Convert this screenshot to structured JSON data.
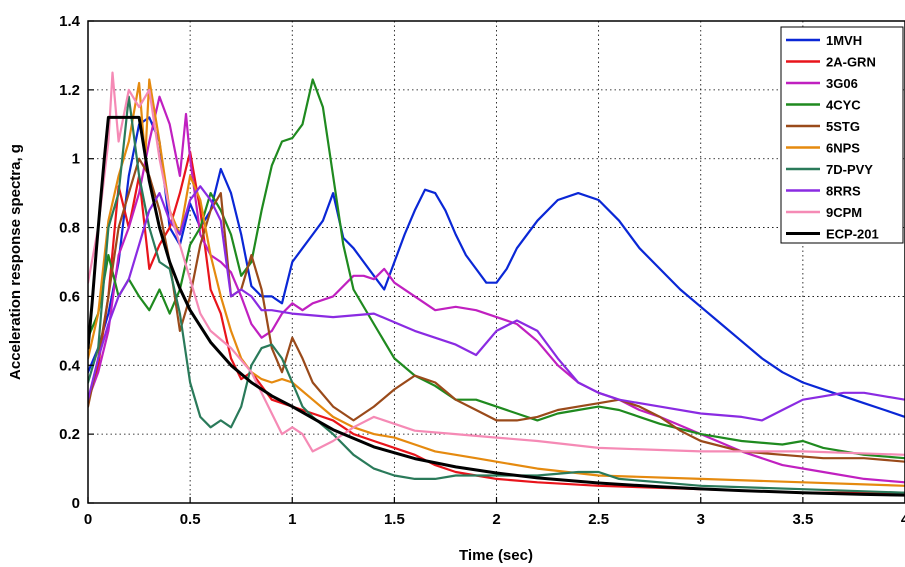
{
  "chart_data": {
    "type": "line",
    "title": "",
    "xlabel": "Time (sec)",
    "ylabel": "Acceleration response spectra, g",
    "xlim": [
      0,
      4
    ],
    "ylim": [
      0,
      1.4
    ],
    "xticks": [
      0,
      0.5,
      1,
      1.5,
      2,
      2.5,
      3,
      3.5,
      4
    ],
    "xtick_labels": [
      "0",
      "0.5",
      "1",
      "1.5",
      "2",
      "2.5",
      "3",
      "3.5",
      "4"
    ],
    "yticks": [
      0,
      0.2,
      0.4,
      0.6,
      0.8,
      1,
      1.2,
      1.4
    ],
    "ytick_labels": [
      "0",
      "0.2",
      "0.4",
      "0.6",
      "0.8",
      "1",
      "1.2",
      "1.4"
    ],
    "grid": true,
    "legend_position": "top-right",
    "series": [
      {
        "name": "1MVH",
        "color": "#0a27d6",
        "x": [
          0.0,
          0.05,
          0.1,
          0.15,
          0.2,
          0.25,
          0.3,
          0.35,
          0.4,
          0.45,
          0.5,
          0.55,
          0.6,
          0.65,
          0.7,
          0.75,
          0.8,
          0.85,
          0.9,
          0.95,
          1.0,
          1.05,
          1.1,
          1.15,
          1.2,
          1.25,
          1.3,
          1.35,
          1.4,
          1.45,
          1.5,
          1.55,
          1.6,
          1.65,
          1.7,
          1.75,
          1.8,
          1.85,
          1.9,
          1.95,
          2.0,
          2.05,
          2.1,
          2.2,
          2.3,
          2.4,
          2.5,
          2.6,
          2.7,
          2.8,
          2.9,
          3.0,
          3.1,
          3.2,
          3.3,
          3.4,
          3.5,
          3.6,
          3.7,
          3.8,
          3.9,
          4.0
        ],
        "y": [
          0.38,
          0.45,
          0.55,
          0.7,
          0.95,
          1.1,
          1.12,
          1.05,
          0.8,
          0.75,
          0.87,
          0.8,
          0.85,
          0.97,
          0.9,
          0.78,
          0.63,
          0.6,
          0.6,
          0.58,
          0.7,
          0.74,
          0.78,
          0.82,
          0.9,
          0.77,
          0.74,
          0.7,
          0.66,
          0.62,
          0.7,
          0.78,
          0.85,
          0.91,
          0.9,
          0.85,
          0.78,
          0.72,
          0.68,
          0.64,
          0.64,
          0.68,
          0.74,
          0.82,
          0.88,
          0.9,
          0.88,
          0.82,
          0.74,
          0.68,
          0.62,
          0.57,
          0.52,
          0.47,
          0.42,
          0.38,
          0.35,
          0.33,
          0.31,
          0.29,
          0.27,
          0.25
        ]
      },
      {
        "name": "2A-GRN",
        "color": "#e8141b",
        "x": [
          0.0,
          0.05,
          0.1,
          0.15,
          0.2,
          0.25,
          0.3,
          0.35,
          0.4,
          0.45,
          0.5,
          0.55,
          0.6,
          0.65,
          0.7,
          0.75,
          0.8,
          0.9,
          1.0,
          1.1,
          1.2,
          1.3,
          1.4,
          1.5,
          1.6,
          1.7,
          1.8,
          1.9,
          2.0,
          2.2,
          2.5,
          3.0,
          3.5,
          4.0
        ],
        "y": [
          0.3,
          0.4,
          0.6,
          0.92,
          0.8,
          0.95,
          0.68,
          0.75,
          0.8,
          0.9,
          1.02,
          0.85,
          0.62,
          0.55,
          0.42,
          0.36,
          0.38,
          0.3,
          0.28,
          0.26,
          0.24,
          0.2,
          0.18,
          0.16,
          0.14,
          0.11,
          0.09,
          0.08,
          0.07,
          0.06,
          0.05,
          0.04,
          0.03,
          0.03
        ]
      },
      {
        "name": "3G06",
        "color": "#c020c0",
        "x": [
          0.0,
          0.05,
          0.1,
          0.15,
          0.2,
          0.25,
          0.3,
          0.35,
          0.4,
          0.45,
          0.48,
          0.5,
          0.55,
          0.6,
          0.65,
          0.7,
          0.75,
          0.8,
          0.85,
          0.9,
          0.95,
          1.0,
          1.05,
          1.1,
          1.2,
          1.3,
          1.35,
          1.4,
          1.45,
          1.5,
          1.6,
          1.7,
          1.8,
          1.9,
          2.0,
          2.1,
          2.2,
          2.3,
          2.4,
          2.5,
          2.6,
          2.7,
          2.8,
          3.0,
          3.2,
          3.4,
          3.6,
          3.8,
          4.0
        ],
        "y": [
          0.3,
          0.38,
          0.5,
          0.72,
          0.8,
          0.9,
          1.05,
          1.18,
          1.1,
          0.95,
          1.13,
          1.0,
          0.78,
          0.72,
          0.7,
          0.67,
          0.6,
          0.52,
          0.48,
          0.5,
          0.55,
          0.58,
          0.56,
          0.58,
          0.6,
          0.66,
          0.66,
          0.65,
          0.68,
          0.64,
          0.6,
          0.56,
          0.57,
          0.56,
          0.54,
          0.52,
          0.47,
          0.4,
          0.35,
          0.32,
          0.3,
          0.27,
          0.25,
          0.2,
          0.15,
          0.11,
          0.09,
          0.07,
          0.06
        ]
      },
      {
        "name": "4CYC",
        "color": "#1f8a1f",
        "x": [
          0.0,
          0.05,
          0.1,
          0.15,
          0.2,
          0.25,
          0.3,
          0.35,
          0.4,
          0.45,
          0.5,
          0.55,
          0.6,
          0.65,
          0.7,
          0.75,
          0.8,
          0.85,
          0.9,
          0.95,
          1.0,
          1.05,
          1.1,
          1.15,
          1.2,
          1.25,
          1.3,
          1.4,
          1.5,
          1.6,
          1.7,
          1.8,
          1.9,
          2.0,
          2.1,
          2.2,
          2.3,
          2.4,
          2.5,
          2.6,
          2.7,
          2.8,
          3.0,
          3.2,
          3.4,
          3.5,
          3.6,
          3.8,
          4.0
        ],
        "y": [
          0.48,
          0.55,
          0.72,
          0.6,
          0.65,
          0.6,
          0.56,
          0.62,
          0.55,
          0.62,
          0.75,
          0.8,
          0.9,
          0.85,
          0.78,
          0.66,
          0.7,
          0.85,
          0.98,
          1.05,
          1.06,
          1.1,
          1.23,
          1.15,
          0.95,
          0.75,
          0.62,
          0.52,
          0.42,
          0.37,
          0.34,
          0.3,
          0.3,
          0.28,
          0.26,
          0.24,
          0.26,
          0.27,
          0.28,
          0.27,
          0.25,
          0.23,
          0.2,
          0.18,
          0.17,
          0.18,
          0.16,
          0.14,
          0.13
        ]
      },
      {
        "name": "5STG",
        "color": "#9a4a1a",
        "x": [
          0.0,
          0.05,
          0.1,
          0.15,
          0.2,
          0.25,
          0.3,
          0.35,
          0.4,
          0.45,
          0.5,
          0.55,
          0.6,
          0.65,
          0.7,
          0.75,
          0.8,
          0.85,
          0.9,
          0.95,
          1.0,
          1.05,
          1.1,
          1.2,
          1.3,
          1.4,
          1.5,
          1.6,
          1.7,
          1.8,
          1.9,
          2.0,
          2.1,
          2.2,
          2.3,
          2.4,
          2.5,
          2.6,
          2.7,
          2.8,
          2.9,
          3.0,
          3.2,
          3.4,
          3.6,
          3.8,
          4.0
        ],
        "y": [
          0.28,
          0.42,
          0.6,
          0.8,
          0.9,
          1.0,
          0.95,
          0.85,
          0.7,
          0.5,
          0.6,
          0.75,
          0.85,
          0.9,
          0.6,
          0.62,
          0.72,
          0.62,
          0.45,
          0.38,
          0.48,
          0.42,
          0.35,
          0.28,
          0.24,
          0.28,
          0.33,
          0.37,
          0.35,
          0.3,
          0.27,
          0.24,
          0.24,
          0.25,
          0.27,
          0.28,
          0.29,
          0.3,
          0.28,
          0.25,
          0.21,
          0.18,
          0.15,
          0.14,
          0.13,
          0.13,
          0.12
        ]
      },
      {
        "name": "6NPS",
        "color": "#e58a0f",
        "x": [
          0.0,
          0.05,
          0.1,
          0.15,
          0.2,
          0.25,
          0.28,
          0.3,
          0.35,
          0.4,
          0.45,
          0.5,
          0.55,
          0.6,
          0.65,
          0.7,
          0.75,
          0.8,
          0.85,
          0.9,
          0.95,
          1.0,
          1.1,
          1.2,
          1.3,
          1.4,
          1.5,
          1.6,
          1.7,
          1.8,
          1.9,
          2.0,
          2.2,
          2.5,
          3.0,
          3.5,
          4.0
        ],
        "y": [
          0.42,
          0.55,
          0.82,
          0.95,
          1.05,
          1.22,
          1.0,
          1.23,
          1.05,
          0.85,
          0.78,
          0.95,
          0.88,
          0.72,
          0.6,
          0.5,
          0.42,
          0.38,
          0.36,
          0.35,
          0.36,
          0.35,
          0.3,
          0.25,
          0.22,
          0.2,
          0.19,
          0.17,
          0.15,
          0.14,
          0.13,
          0.12,
          0.1,
          0.08,
          0.07,
          0.06,
          0.05
        ]
      },
      {
        "name": "7D-PVY",
        "color": "#2a7a5a",
        "x": [
          0.0,
          0.05,
          0.1,
          0.15,
          0.2,
          0.25,
          0.3,
          0.35,
          0.4,
          0.45,
          0.5,
          0.55,
          0.6,
          0.65,
          0.7,
          0.75,
          0.8,
          0.85,
          0.9,
          0.95,
          1.0,
          1.05,
          1.1,
          1.2,
          1.3,
          1.4,
          1.5,
          1.6,
          1.7,
          1.8,
          1.9,
          2.0,
          2.2,
          2.4,
          2.5,
          2.6,
          2.8,
          3.0,
          3.5,
          4.0
        ],
        "y": [
          0.35,
          0.45,
          0.8,
          0.9,
          1.18,
          0.95,
          0.8,
          0.7,
          0.68,
          0.55,
          0.35,
          0.25,
          0.22,
          0.24,
          0.22,
          0.28,
          0.4,
          0.45,
          0.46,
          0.42,
          0.35,
          0.28,
          0.25,
          0.2,
          0.14,
          0.1,
          0.08,
          0.07,
          0.07,
          0.08,
          0.08,
          0.08,
          0.08,
          0.09,
          0.09,
          0.07,
          0.06,
          0.05,
          0.04,
          0.03
        ]
      },
      {
        "name": "8RRS",
        "color": "#8a2be2",
        "x": [
          0.0,
          0.05,
          0.1,
          0.15,
          0.2,
          0.25,
          0.3,
          0.35,
          0.4,
          0.45,
          0.5,
          0.55,
          0.6,
          0.65,
          0.7,
          0.75,
          0.8,
          0.85,
          0.9,
          1.0,
          1.2,
          1.4,
          1.6,
          1.8,
          1.9,
          2.0,
          2.1,
          2.2,
          2.3,
          2.4,
          2.5,
          2.6,
          2.8,
          3.0,
          3.2,
          3.3,
          3.4,
          3.5,
          3.6,
          3.7,
          3.8,
          3.9,
          4.0
        ],
        "y": [
          0.3,
          0.42,
          0.52,
          0.6,
          0.65,
          0.75,
          0.85,
          0.9,
          0.82,
          0.78,
          0.88,
          0.92,
          0.88,
          0.82,
          0.6,
          0.62,
          0.6,
          0.56,
          0.56,
          0.55,
          0.54,
          0.55,
          0.5,
          0.46,
          0.43,
          0.5,
          0.53,
          0.5,
          0.42,
          0.35,
          0.32,
          0.3,
          0.28,
          0.26,
          0.25,
          0.24,
          0.27,
          0.3,
          0.31,
          0.32,
          0.32,
          0.31,
          0.3
        ]
      },
      {
        "name": "9CPM",
        "color": "#f58ab5",
        "x": [
          0.0,
          0.05,
          0.1,
          0.12,
          0.15,
          0.2,
          0.25,
          0.3,
          0.35,
          0.4,
          0.45,
          0.5,
          0.55,
          0.6,
          0.7,
          0.8,
          0.9,
          0.95,
          1.0,
          1.05,
          1.1,
          1.2,
          1.3,
          1.4,
          1.5,
          1.6,
          1.8,
          2.0,
          2.2,
          2.5,
          3.0,
          3.5,
          4.0
        ],
        "y": [
          0.64,
          0.8,
          1.05,
          1.25,
          1.05,
          1.2,
          1.15,
          1.2,
          1.0,
          0.85,
          0.75,
          0.65,
          0.55,
          0.5,
          0.45,
          0.38,
          0.26,
          0.2,
          0.22,
          0.2,
          0.15,
          0.18,
          0.22,
          0.25,
          0.23,
          0.21,
          0.2,
          0.19,
          0.18,
          0.16,
          0.15,
          0.15,
          0.14
        ]
      },
      {
        "name": "ECP-201",
        "color": "#000000",
        "x": [
          0.0,
          0.02,
          0.04,
          0.06,
          0.08,
          0.1,
          0.25,
          0.3,
          0.35,
          0.4,
          0.45,
          0.5,
          0.6,
          0.7,
          0.8,
          0.9,
          1.0,
          1.2,
          1.4,
          1.6,
          1.8,
          2.0,
          2.2,
          2.5,
          2.8,
          3.0,
          3.2,
          3.5,
          3.8,
          4.0
        ],
        "y": [
          0.45,
          0.58,
          0.73,
          0.87,
          1.0,
          1.12,
          1.12,
          0.935,
          0.8,
          0.7,
          0.623,
          0.56,
          0.467,
          0.4,
          0.35,
          0.311,
          0.28,
          0.213,
          0.163,
          0.129,
          0.105,
          0.087,
          0.073,
          0.058,
          0.047,
          0.041,
          0.036,
          0.03,
          0.025,
          0.023
        ]
      }
    ]
  }
}
